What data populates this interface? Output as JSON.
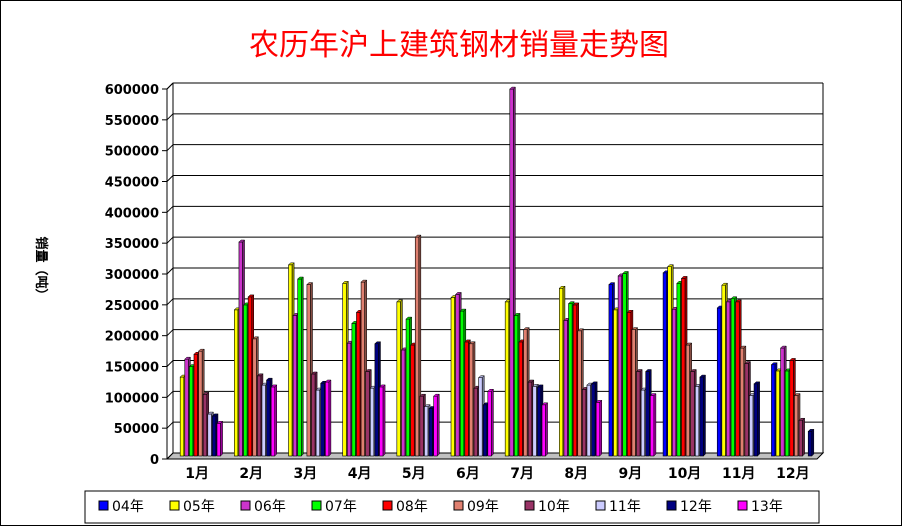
{
  "chart_data": {
    "type": "bar",
    "title": "农历年沪上建筑钢材销量走势图",
    "ylabel": "销量（吨）",
    "xlabel": "",
    "ylim": [
      0,
      600000
    ],
    "yticks": [
      0,
      50000,
      100000,
      150000,
      200000,
      250000,
      300000,
      350000,
      400000,
      450000,
      500000,
      550000,
      600000
    ],
    "grid": true,
    "legend_position": "bottom",
    "categories": [
      "1月",
      "2月",
      "3月",
      "4月",
      "5月",
      "6月",
      "7月",
      "8月",
      "9月",
      "10月",
      "11月",
      "12月"
    ],
    "series": [
      {
        "name": "04年",
        "color": "#0000ff",
        "values": [
          0,
          0,
          0,
          0,
          0,
          0,
          0,
          0,
          278000,
          297000,
          240000,
          148000
        ]
      },
      {
        "name": "05年",
        "color": "#ffff00",
        "values": [
          128000,
          237000,
          310000,
          280000,
          250000,
          257000,
          250000,
          272000,
          237000,
          307000,
          277000,
          138000
        ]
      },
      {
        "name": "06年",
        "color": "#cc33cc",
        "values": [
          157000,
          347000,
          228000,
          183000,
          172000,
          262000,
          595000,
          220000,
          292000,
          238000,
          250000,
          175000
        ]
      },
      {
        "name": "07年",
        "color": "#00ff00",
        "values": [
          145000,
          245000,
          287000,
          215000,
          222000,
          235000,
          228000,
          247000,
          296000,
          280000,
          255000,
          138000
        ]
      },
      {
        "name": "08年",
        "color": "#ff0000",
        "values": [
          165000,
          258000,
          0,
          233000,
          180000,
          185000,
          185000,
          245000,
          233000,
          288000,
          250000,
          155000
        ]
      },
      {
        "name": "09年",
        "color": "#e08070",
        "values": [
          170000,
          190000,
          278000,
          282000,
          355000,
          182000,
          205000,
          203000,
          205000,
          180000,
          175000,
          98000
        ]
      },
      {
        "name": "10年",
        "color": "#993366",
        "values": [
          100000,
          130000,
          133000,
          137000,
          97000,
          110000,
          120000,
          108000,
          137000,
          137000,
          150000,
          58000
        ]
      },
      {
        "name": "11年",
        "color": "#ccccff",
        "values": [
          68000,
          115000,
          107000,
          110000,
          80000,
          127000,
          113000,
          115000,
          107000,
          113000,
          98000,
          0
        ]
      },
      {
        "name": "12年",
        "color": "#000080",
        "values": [
          65000,
          123000,
          118000,
          182000,
          77000,
          83000,
          112000,
          117000,
          137000,
          128000,
          117000,
          40000
        ]
      },
      {
        "name": "13年",
        "color": "#ff00ff",
        "values": [
          53000,
          112000,
          120000,
          112000,
          97000,
          105000,
          83000,
          87000,
          98000,
          0,
          0,
          0
        ]
      }
    ]
  }
}
